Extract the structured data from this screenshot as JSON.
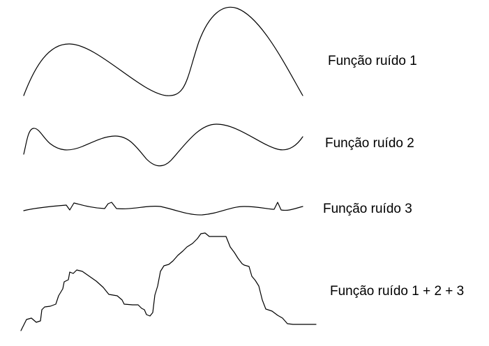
{
  "labels": {
    "noise1": "Função ruído 1",
    "noise2": "Função ruído 2",
    "noise3": "Função ruído 3",
    "sum": "Função ruído 1 + 2 + 3"
  },
  "colors": {
    "background": "#ffffff",
    "stroke": "#000000"
  }
}
